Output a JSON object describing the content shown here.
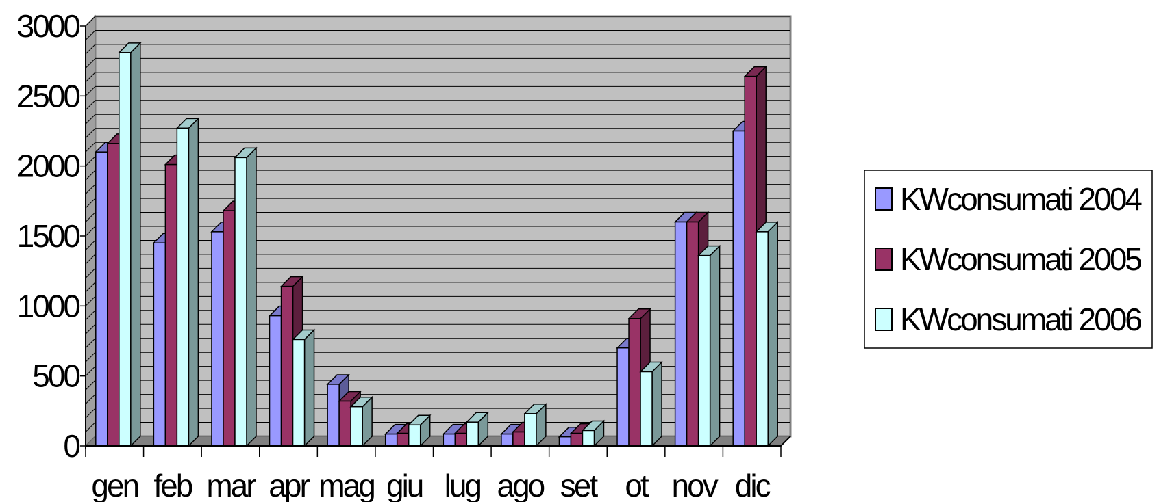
{
  "chart_data": {
    "type": "bar",
    "style": "3d-clustered-column",
    "categories": [
      "gen",
      "feb",
      "mar",
      "apr",
      "mag",
      "giu",
      "lug",
      "ago",
      "set",
      "ot",
      "nov",
      "dic"
    ],
    "series": [
      {
        "name": "KWconsumati 2004",
        "color": "#9999FF",
        "values": [
          2100,
          1450,
          1530,
          930,
          440,
          85,
          85,
          85,
          65,
          700,
          1600,
          2250
        ]
      },
      {
        "name": "KWconsumati 2005",
        "color": "#993366",
        "values": [
          2160,
          2010,
          1680,
          1140,
          320,
          90,
          90,
          100,
          90,
          910,
          1600,
          2640
        ]
      },
      {
        "name": "KWconsumati 2006",
        "color": "#CCFFFF",
        "values": [
          2810,
          2270,
          2060,
          760,
          280,
          150,
          170,
          230,
          110,
          530,
          1360,
          1530
        ]
      }
    ],
    "y_ticks": [
      "0",
      "500",
      "1000",
      "1500",
      "2000",
      "2500",
      "3000"
    ],
    "ylim": [
      0,
      3000
    ],
    "grid_step": 100,
    "grid": true,
    "wall_color": "#C0C0C0",
    "floor_color": "#808080",
    "legend_position": "right",
    "title": "",
    "xlabel": "",
    "ylabel": ""
  }
}
